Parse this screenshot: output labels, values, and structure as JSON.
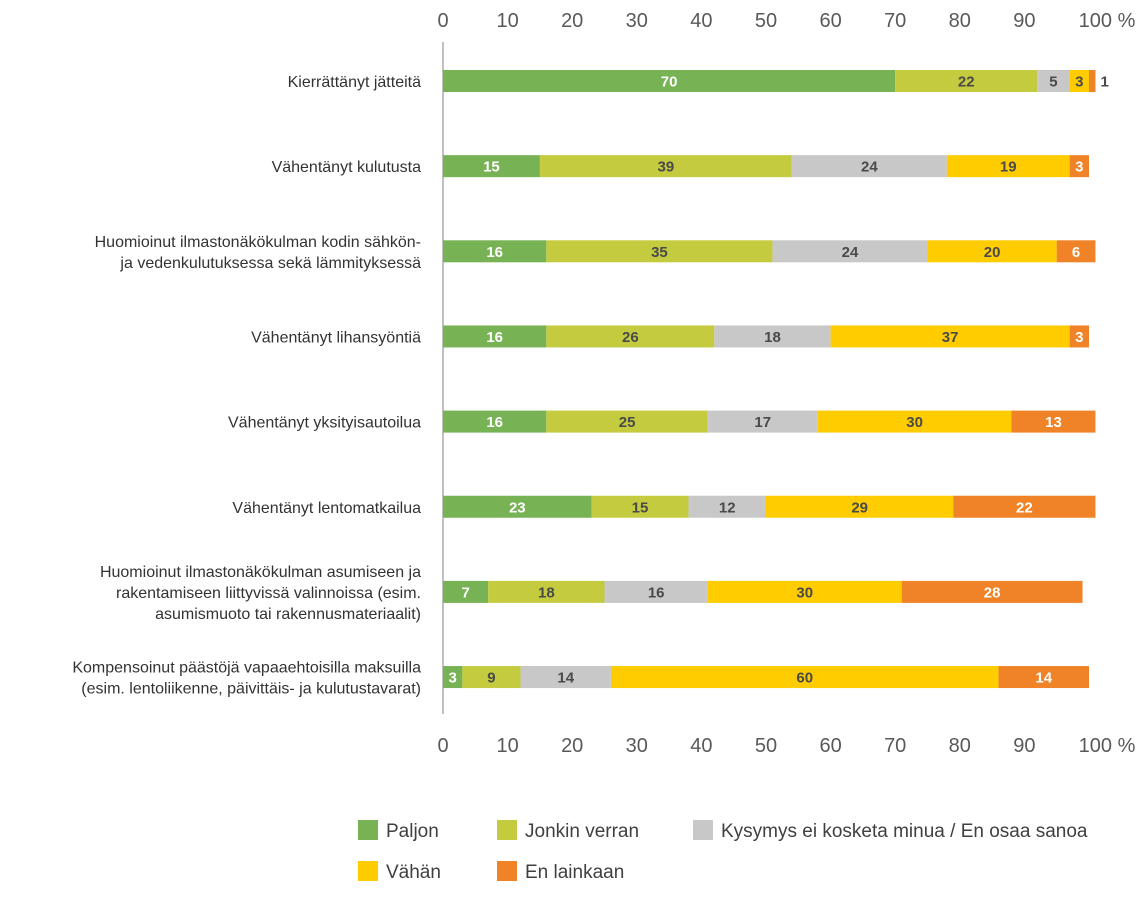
{
  "chart_data": {
    "type": "bar",
    "orientation": "horizontal",
    "stacked": true,
    "xlim": [
      0,
      100
    ],
    "x_ticks": [
      "0",
      "10",
      "20",
      "30",
      "40",
      "50",
      "60",
      "70",
      "80",
      "90",
      "100 %"
    ],
    "categories": [
      [
        "Kierrättänyt jätteitä"
      ],
      [
        "Vähentänyt kulutusta"
      ],
      [
        "Huomioinut ilmastonäkökulman kodin sähkön-",
        "ja vedenkulutuksessa sekä lämmityksessä"
      ],
      [
        "Vähentänyt lihansyöntiä"
      ],
      [
        "Vähentänyt yksityisautoilua"
      ],
      [
        "Vähentänyt lentomatkailua"
      ],
      [
        "Huomioinut ilmastonäkökulman asumiseen ja",
        "rakentamiseen liittyvissä valinnoissa (esim.",
        "asumismuoto tai rakennusmateriaalit)"
      ],
      [
        "Kompensoinut päästöjä vapaaehtoisilla maksuilla",
        "(esim. lentoliikenne, päivittäis- ja kulutustavarat)"
      ]
    ],
    "series": [
      {
        "name": "Paljon",
        "color": "#77b255",
        "label_color": "#ffffff",
        "values": [
          70,
          15,
          16,
          16,
          16,
          23,
          7,
          3
        ]
      },
      {
        "name": "Jonkin verran",
        "color": "#c5cb3f",
        "label_color": "#4a4a4a",
        "values": [
          22,
          39,
          35,
          26,
          25,
          15,
          18,
          9
        ]
      },
      {
        "name": "Kysymys ei kosketa minua / En osaa sanoa",
        "color": "#c8c8c8",
        "label_color": "#4a4a4a",
        "values": [
          5,
          24,
          24,
          18,
          17,
          12,
          16,
          14
        ]
      },
      {
        "name": "Vähän",
        "color": "#ffcc00",
        "label_color": "#4a4a4a",
        "values": [
          3,
          19,
          20,
          37,
          30,
          29,
          30,
          60
        ]
      },
      {
        "name": "En lainkaan",
        "color": "#f08327",
        "label_color": "#ffffff",
        "values": [
          1,
          3,
          6,
          3,
          13,
          22,
          28,
          14
        ]
      }
    ],
    "legend_position": "bottom",
    "grid": false
  }
}
